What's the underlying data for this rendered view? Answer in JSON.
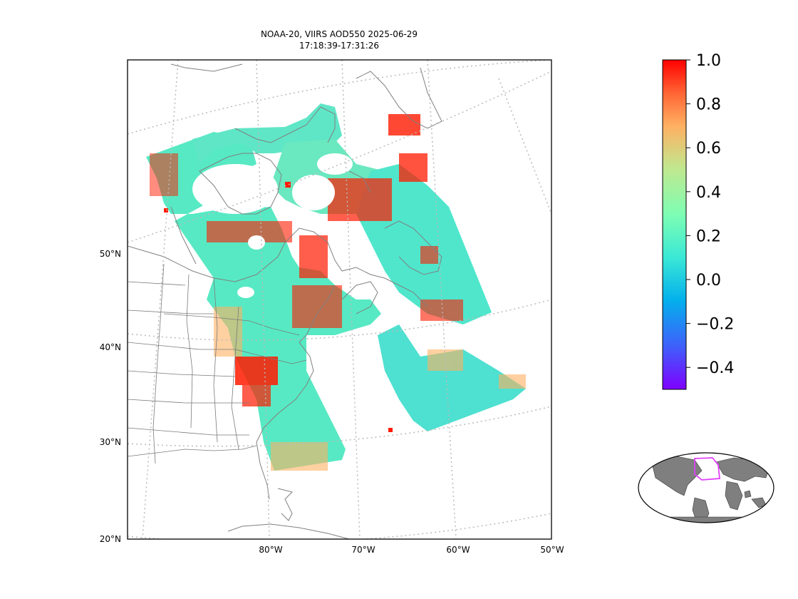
{
  "title": {
    "line1": "NOAA-20, VIIRS AOD550 2025-06-29",
    "line2": "17:18:39-17:31:26"
  },
  "axes": {
    "lat_labels": [
      "50°N",
      "40°N",
      "30°N",
      "20°N"
    ],
    "lon_labels": [
      "80°W",
      "70°W",
      "60°W",
      "50°W"
    ],
    "gridlines": "dotted"
  },
  "colorbar": {
    "colormap": "rainbow",
    "range": [
      -0.5,
      1.0
    ],
    "ticks": [
      "1.0",
      "0.8",
      "0.6",
      "0.4",
      "0.2",
      "0.0",
      "−0.2",
      "−0.4"
    ],
    "tick_values": [
      1.0,
      0.8,
      0.6,
      0.4,
      0.2,
      0.0,
      -0.2,
      -0.4
    ]
  },
  "inset": {
    "description_icon": "globe-inset",
    "land_color": "#7f7f7f",
    "highlight_color": "#e040fb"
  },
  "colors": {
    "coast": "#808080",
    "states": "#7a7a7a",
    "grid": "#bbbbbb"
  }
}
